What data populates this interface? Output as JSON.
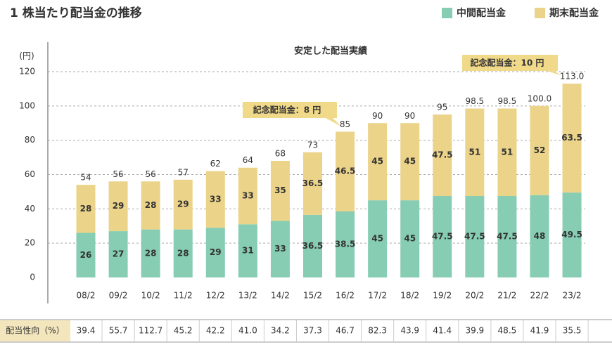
{
  "chart_data": {
    "type": "bar",
    "stacked": true,
    "title": "1 株当たり配当金の推移",
    "subtitle": "安定した配当実績",
    "y_unit": "(円)",
    "categories": [
      "08/2",
      "09/2",
      "10/2",
      "11/2",
      "12/2",
      "13/2",
      "14/2",
      "15/2",
      "16/2",
      "17/2",
      "18/2",
      "19/2",
      "20/2",
      "21/2",
      "22/2",
      "23/2"
    ],
    "series": [
      {
        "name": "中間配当金",
        "color": "#86cdb4",
        "values": [
          26,
          27,
          28,
          28,
          29,
          31,
          33,
          36.5,
          38.5,
          45,
          45,
          47.5,
          47.5,
          47.5,
          48,
          49.5
        ]
      },
      {
        "name": "期末配当金",
        "color": "#ebd389",
        "values": [
          28,
          29,
          28,
          29,
          33,
          33,
          35,
          36.5,
          46.5,
          45,
          45,
          47.5,
          51,
          51,
          52,
          63.5
        ]
      }
    ],
    "totals": {
      "values": [
        54,
        56,
        56,
        57,
        62,
        64,
        68,
        73,
        85,
        90,
        90,
        95,
        98.5,
        98.5,
        100,
        113
      ],
      "value_labels": [
        "54",
        "56",
        "56",
        "57",
        "62",
        "64",
        "68",
        "73",
        "85",
        "90",
        "90",
        "95",
        "98.5",
        "98.5",
        "100.0",
        "113.0"
      ]
    },
    "ylim": [
      0,
      120
    ],
    "yticks": [
      0,
      20,
      40,
      60,
      80,
      100,
      120
    ],
    "grid": true,
    "legend": "top-right",
    "annotations": [
      "記念配当金：8 円",
      "記念配当金：10 円"
    ]
  },
  "table": {
    "label": "配当性向（%）",
    "values": [
      "39.4",
      "55.7",
      "112.7",
      "45.2",
      "42.2",
      "41.0",
      "34.2",
      "37.3",
      "46.7",
      "82.3",
      "43.9",
      "41.4",
      "39.9",
      "48.5",
      "41.9",
      "35.5"
    ]
  }
}
